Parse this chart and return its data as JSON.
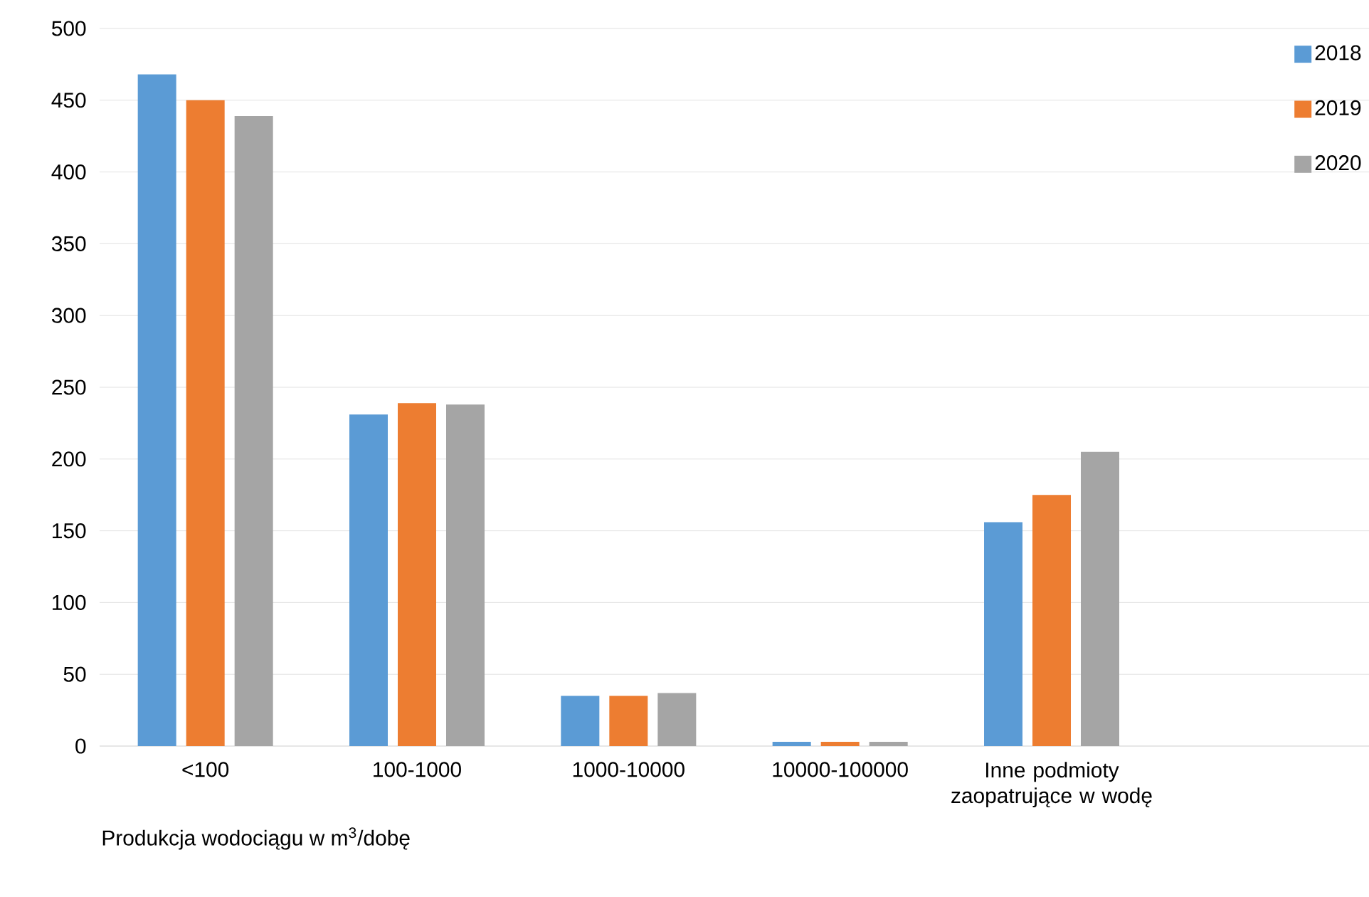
{
  "chart_data": {
    "type": "bar",
    "xlabel": "Produkcja wodociągu w m$^{3}$/dobę",
    "categories": [
      "<100",
      "100-1000",
      "1000-10000",
      "10000-100000",
      "Inne podmioty zaopatrujące w wodę",
      null
    ],
    "series": [
      {
        "name": "2018",
        "color": "#5b9bd5",
        "values": [
          468,
          231,
          35,
          3,
          156,
          null
        ]
      },
      {
        "name": "2019",
        "color": "#ed7d31",
        "values": [
          450,
          239,
          35,
          3,
          175,
          null
        ]
      },
      {
        "name": "2020",
        "color": "#a5a5a5",
        "values": [
          439,
          238,
          37,
          3,
          205,
          null
        ]
      }
    ],
    "ylim": [
      0,
      500
    ],
    "yticks": [
      0,
      50,
      100,
      150,
      200,
      250,
      300,
      350,
      400,
      450,
      500
    ],
    "grid": "y",
    "legend": "top right"
  }
}
